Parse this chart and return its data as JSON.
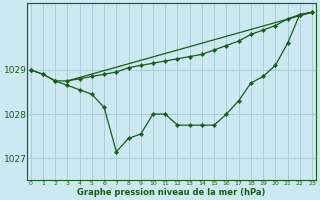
{
  "title": "Graphe pression niveau de la mer (hPa)",
  "bg_color": "#cce8f0",
  "grid_color": "#aaccd8",
  "line_color": "#1a5c1a",
  "x_ticks": [
    0,
    1,
    2,
    3,
    4,
    5,
    6,
    7,
    8,
    9,
    10,
    11,
    12,
    13,
    14,
    15,
    16,
    17,
    18,
    19,
    20,
    21,
    22,
    23
  ],
  "y_ticks": [
    1027,
    1028,
    1029
  ],
  "ylim": [
    1026.5,
    1030.5
  ],
  "xlim": [
    -0.3,
    23.3
  ],
  "series": {
    "line_top": {
      "x": [
        3,
        23
      ],
      "y": [
        1028.75,
        1030.3
      ]
    },
    "line_mid": {
      "x": [
        3,
        23
      ],
      "y": [
        1028.75,
        1030.3
      ]
    },
    "line_main": [
      1029.0,
      1028.9,
      1028.75,
      1028.65,
      1028.55,
      1028.45,
      1028.15,
      1027.15,
      1027.45,
      1027.55,
      1028.0,
      1028.0,
      1027.75,
      1027.75,
      1027.75,
      1027.75,
      1028.0,
      1028.3,
      1028.7,
      1028.85,
      1029.1,
      1029.6,
      1030.25,
      1030.3
    ],
    "line_upper": [
      1029.0,
      1028.9,
      1028.75,
      1028.75,
      1028.8,
      1028.85,
      1028.9,
      1028.95,
      1029.05,
      1029.1,
      1029.15,
      1029.2,
      1029.25,
      1029.3,
      1029.35,
      1029.45,
      1029.55,
      1029.65,
      1029.8,
      1029.9,
      1030.0,
      1030.15,
      1030.25,
      1030.3
    ]
  }
}
